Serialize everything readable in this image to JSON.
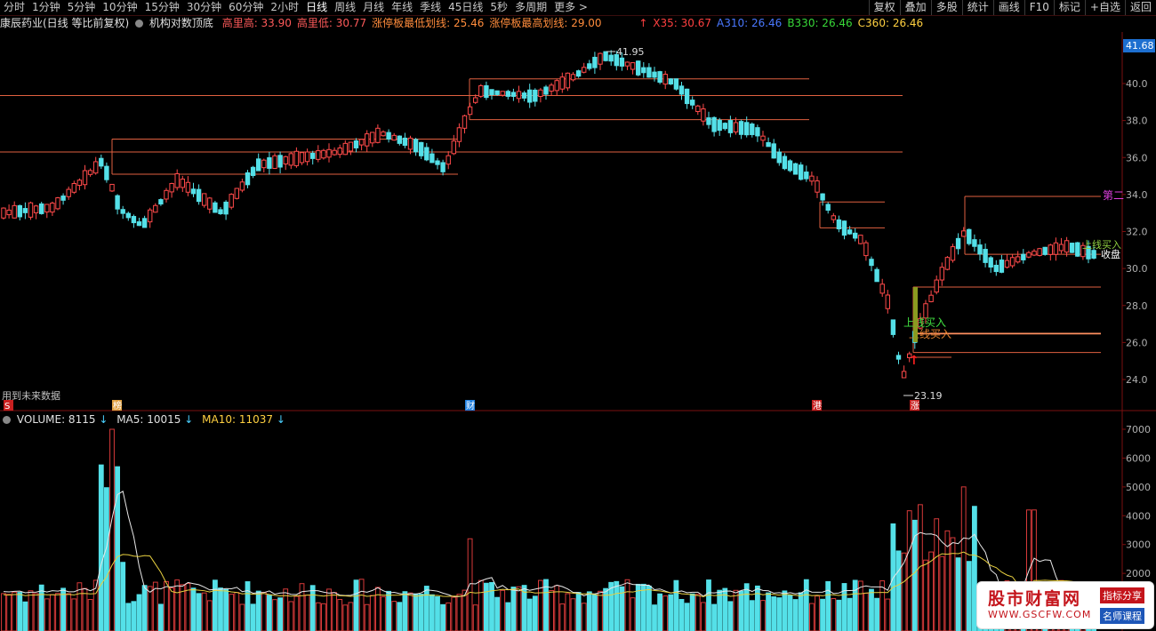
{
  "toolbar": {
    "tabs": [
      "分时",
      "1分钟",
      "5分钟",
      "10分钟",
      "15分钟",
      "30分钟",
      "60分钟",
      "2小时",
      "日线",
      "周线",
      "月线",
      "年线",
      "季线",
      "45日线",
      "5秒",
      "多周期",
      "更多 >"
    ],
    "active_tab": "日线",
    "right_buttons": [
      "复权",
      "叠加",
      "多股",
      "统计",
      "画线",
      "F10",
      "标记",
      "+自选",
      "返回"
    ]
  },
  "info": {
    "stock": "康辰药业(日线 等比前复权)",
    "indicator_name": "机构对数顶底",
    "items": [
      {
        "label": "高里高: 33.90",
        "color": "#ff5a5a"
      },
      {
        "label": "高里低: 30.77",
        "color": "#ff5a5a"
      },
      {
        "label": "涨停板最低划线: 25.46",
        "color": "#ff8c3c"
      },
      {
        "label": "涨停板最高划线: 29.00",
        "color": "#ff8c3c"
      }
    ],
    "ma_items": [
      {
        "label": "X35: 30.67",
        "color": "#ff4040"
      },
      {
        "label": "A310: 26.46",
        "color": "#4a78ff"
      },
      {
        "label": "B330: 26.46",
        "color": "#38d838"
      },
      {
        "label": "C360: 26.46",
        "color": "#ffd040"
      }
    ]
  },
  "price_axis": {
    "ticks": [
      "40.0",
      "38.0",
      "36.0",
      "34.0",
      "32.0",
      "30.0",
      "28.0",
      "26.0",
      "24.0"
    ],
    "current": "41.68"
  },
  "annotations": {
    "high": "41.95",
    "low": "23.19",
    "future_warning": "用到未来数据",
    "second": "第二",
    "buy1": "上线买入",
    "buy2": "上线买入",
    "buy3": "上线买入",
    "close_label": "收盘",
    "markers": [
      "S",
      "榜",
      "财",
      "港",
      "涨"
    ]
  },
  "volume": {
    "label": "VOLUME: 8115",
    "ma5": "MA5: 10015",
    "ma10": "MA10: 11037",
    "ticks": [
      "7000",
      "6000",
      "5000",
      "4000",
      "3000",
      "2000"
    ]
  },
  "watermark": {
    "title": "股市财富网",
    "url": "WWW.GSCFW.COM",
    "tag1": "指标分享",
    "tag2": "名师课程"
  }
}
